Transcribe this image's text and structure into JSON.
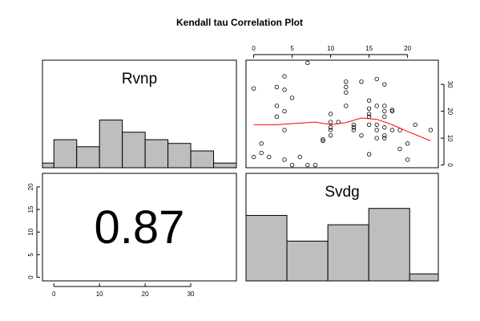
{
  "title": "Kendall tau Correlation Plot",
  "chart_data": [
    {
      "type": "bar",
      "panel": "top-left histogram",
      "label": "Rvnp",
      "bin_edges": [
        -5,
        0,
        5,
        10,
        15,
        20,
        25,
        30,
        35,
        40
      ],
      "values": [
        1,
        6,
        4.5,
        10.2,
        7.6,
        6,
        5.2,
        3.6,
        1
      ],
      "xlim": [
        -2.5,
        40
      ],
      "ylim": [
        0,
        23
      ],
      "fill": "#bebebe"
    },
    {
      "type": "scatter",
      "panel": "top-right scatter",
      "x_ticks": [
        0,
        5,
        10,
        15,
        20
      ],
      "y_ticks": [
        0,
        10,
        20,
        30
      ],
      "xlim": [
        -1,
        24
      ],
      "ylim": [
        -1,
        39
      ],
      "points": [
        [
          0,
          28.5
        ],
        [
          0,
          3
        ],
        [
          1,
          8
        ],
        [
          1,
          4.5
        ],
        [
          2,
          3
        ],
        [
          3,
          29
        ],
        [
          3,
          22
        ],
        [
          3,
          18
        ],
        [
          4,
          33
        ],
        [
          4,
          28
        ],
        [
          4,
          20
        ],
        [
          4,
          13
        ],
        [
          4,
          2
        ],
        [
          5,
          25
        ],
        [
          5,
          0
        ],
        [
          6,
          3
        ],
        [
          7,
          38
        ],
        [
          7,
          0
        ],
        [
          8,
          0
        ],
        [
          9,
          9
        ],
        [
          9,
          9.5
        ],
        [
          10,
          19
        ],
        [
          10,
          14
        ],
        [
          10,
          13
        ],
        [
          10,
          11
        ],
        [
          10,
          16
        ],
        [
          11,
          16
        ],
        [
          12,
          31
        ],
        [
          12,
          29
        ],
        [
          12,
          27
        ],
        [
          12,
          22
        ],
        [
          13,
          15
        ],
        [
          13,
          13
        ],
        [
          13,
          14
        ],
        [
          14,
          31
        ],
        [
          14,
          11
        ],
        [
          15,
          24
        ],
        [
          15,
          21
        ],
        [
          15,
          19
        ],
        [
          15,
          18
        ],
        [
          15,
          15
        ],
        [
          15,
          4
        ],
        [
          16,
          32
        ],
        [
          16,
          22
        ],
        [
          16,
          15
        ],
        [
          16,
          13
        ],
        [
          16,
          10
        ],
        [
          17,
          30
        ],
        [
          17,
          22
        ],
        [
          17,
          20
        ],
        [
          17,
          18
        ],
        [
          17,
          14
        ],
        [
          17,
          11
        ],
        [
          17,
          10
        ],
        [
          18,
          20
        ],
        [
          18,
          13
        ],
        [
          18,
          20.5
        ],
        [
          19,
          13
        ],
        [
          19,
          6
        ],
        [
          20,
          8
        ],
        [
          20,
          2
        ],
        [
          21,
          15
        ],
        [
          23,
          13
        ]
      ],
      "smoother": [
        [
          0,
          15
        ],
        [
          3,
          15
        ],
        [
          6,
          15.6
        ],
        [
          8,
          16
        ],
        [
          10,
          15
        ],
        [
          12,
          15.8
        ],
        [
          14,
          17.5
        ],
        [
          16,
          17
        ],
        [
          18,
          15
        ],
        [
          20,
          12.5
        ],
        [
          23,
          9
        ]
      ],
      "smoother_color": "#ff0000"
    },
    {
      "type": "table",
      "panel": "bottom-left correlation",
      "value": "0.87",
      "y_ticks": [
        0,
        5,
        10,
        15,
        20
      ],
      "x_ticks": [
        0,
        10,
        20,
        30
      ]
    },
    {
      "type": "bar",
      "panel": "bottom-right histogram",
      "label": "Svdg",
      "bin_edges": [
        0,
        1,
        2,
        3,
        4,
        5
      ],
      "values": [
        14,
        8.5,
        12,
        15.5,
        1.5
      ],
      "xlim": [
        0,
        4.7
      ],
      "ylim": [
        0,
        23
      ],
      "fill": "#bebebe"
    }
  ]
}
